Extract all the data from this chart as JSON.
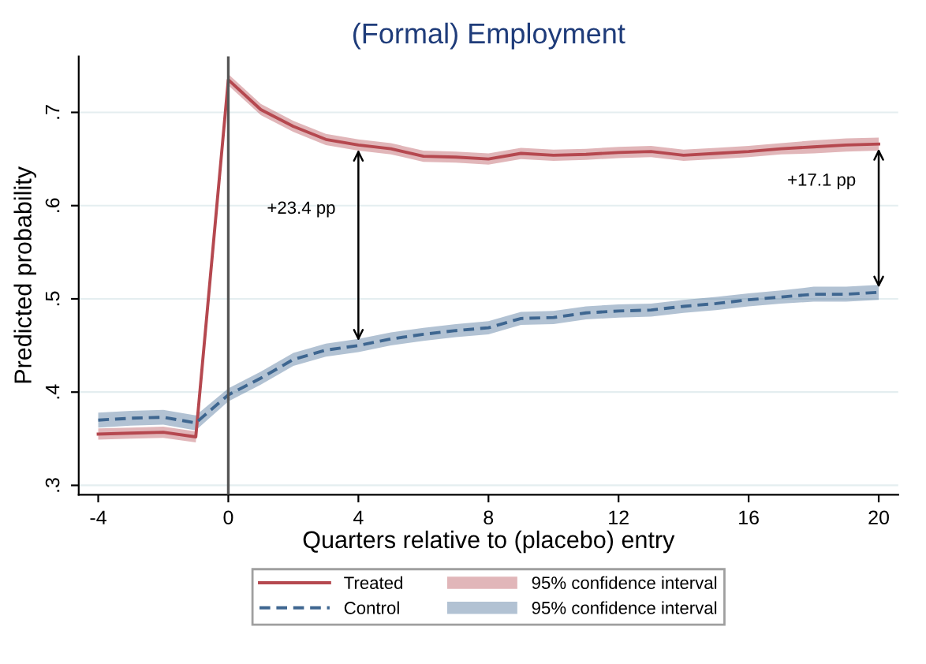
{
  "chart_data": {
    "type": "line",
    "title": "(Formal) Employment",
    "xlabel": "Quarters relative to (placebo) entry",
    "ylabel": "Predicted probability",
    "x": [
      -4,
      -3,
      -2,
      -1,
      0,
      1,
      2,
      3,
      4,
      5,
      6,
      7,
      8,
      9,
      10,
      11,
      12,
      13,
      14,
      15,
      16,
      17,
      18,
      19,
      20
    ],
    "series": [
      {
        "name": "Treated",
        "color": "#b5484f",
        "line_style": "solid",
        "values": [
          0.355,
          0.356,
          0.357,
          0.352,
          0.735,
          0.703,
          0.685,
          0.671,
          0.665,
          0.661,
          0.653,
          0.652,
          0.65,
          0.656,
          0.654,
          0.655,
          0.657,
          0.658,
          0.654,
          0.656,
          0.658,
          0.661,
          0.663,
          0.665,
          0.666
        ],
        "lower": [
          0.349,
          0.35,
          0.351,
          0.346,
          0.729,
          0.697,
          0.679,
          0.665,
          0.659,
          0.655,
          0.647,
          0.646,
          0.644,
          0.65,
          0.648,
          0.649,
          0.651,
          0.652,
          0.648,
          0.65,
          0.652,
          0.655,
          0.656,
          0.658,
          0.659
        ],
        "upper": [
          0.361,
          0.362,
          0.363,
          0.358,
          0.741,
          0.709,
          0.691,
          0.677,
          0.671,
          0.667,
          0.659,
          0.658,
          0.656,
          0.662,
          0.66,
          0.661,
          0.663,
          0.664,
          0.66,
          0.662,
          0.664,
          0.667,
          0.67,
          0.672,
          0.673
        ]
      },
      {
        "name": "Control",
        "color": "#3e6690",
        "line_style": "dashed",
        "values": [
          0.37,
          0.372,
          0.373,
          0.367,
          0.397,
          0.415,
          0.435,
          0.445,
          0.45,
          0.457,
          0.462,
          0.466,
          0.469,
          0.479,
          0.48,
          0.485,
          0.487,
          0.488,
          0.492,
          0.495,
          0.499,
          0.502,
          0.505,
          0.505,
          0.507
        ],
        "lower": [
          0.362,
          0.364,
          0.365,
          0.359,
          0.39,
          0.408,
          0.428,
          0.438,
          0.443,
          0.45,
          0.455,
          0.459,
          0.462,
          0.472,
          0.473,
          0.478,
          0.48,
          0.481,
          0.485,
          0.488,
          0.492,
          0.495,
          0.497,
          0.497,
          0.499
        ],
        "upper": [
          0.378,
          0.38,
          0.381,
          0.375,
          0.404,
          0.422,
          0.442,
          0.452,
          0.457,
          0.464,
          0.469,
          0.473,
          0.476,
          0.486,
          0.487,
          0.492,
          0.494,
          0.495,
          0.499,
          0.502,
          0.506,
          0.509,
          0.513,
          0.513,
          0.515
        ]
      }
    ],
    "xlim": [
      -4.6,
      20.6
    ],
    "xticks": [
      -4,
      0,
      4,
      8,
      12,
      16,
      20
    ],
    "ylim": [
      0.29,
      0.76
    ],
    "yticks": [
      {
        "value": 0.3,
        "label": ".3"
      },
      {
        "value": 0.4,
        "label": ".4"
      },
      {
        "value": 0.5,
        "label": ".5"
      },
      {
        "value": 0.6,
        "label": ".6"
      },
      {
        "value": 0.7,
        "label": ".7"
      }
    ],
    "ref_lines": [
      {
        "axis": "x",
        "value": 0,
        "color": "#555555"
      }
    ],
    "annotations": [
      "+23.4 pp",
      "+17.1 pp",
      "95% confidence interval",
      "95% confidence interval"
    ],
    "grid": "y",
    "legend": "bottom",
    "marker": "none"
  }
}
